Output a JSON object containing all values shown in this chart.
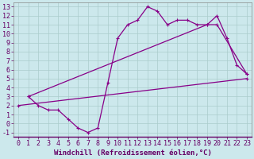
{
  "xlabel": "Windchill (Refroidissement éolien,°C)",
  "background_color": "#cce8ec",
  "grid_color": "#aacccc",
  "line_color": "#880088",
  "xlim": [
    -0.5,
    23.5
  ],
  "ylim": [
    -1.5,
    13.5
  ],
  "xticks": [
    0,
    1,
    2,
    3,
    4,
    5,
    6,
    7,
    8,
    9,
    10,
    11,
    12,
    13,
    14,
    15,
    16,
    17,
    18,
    19,
    20,
    21,
    22,
    23
  ],
  "yticks": [
    -1,
    0,
    1,
    2,
    3,
    4,
    5,
    6,
    7,
    8,
    9,
    10,
    11,
    12,
    13
  ],
  "line1_x": [
    1,
    2,
    3,
    4,
    5,
    6,
    7,
    8,
    9,
    10,
    11,
    12,
    13,
    14,
    15,
    16,
    17,
    18,
    19,
    20,
    21,
    22,
    23
  ],
  "line1_y": [
    3,
    2,
    1.5,
    1.5,
    0.5,
    -0.5,
    -1,
    -0.5,
    4.5,
    9.5,
    11,
    11.5,
    13,
    12.5,
    11,
    11.5,
    11.5,
    11,
    11,
    12,
    9.5,
    6.5,
    5.5
  ],
  "line2_x": [
    1,
    19,
    20,
    23
  ],
  "line2_y": [
    3,
    11,
    11,
    5.5
  ],
  "line3_x": [
    0,
    23
  ],
  "line3_y": [
    2,
    5
  ],
  "xlabel_fontsize": 6.5,
  "tick_fontsize": 6,
  "xlabel_color": "#660066"
}
